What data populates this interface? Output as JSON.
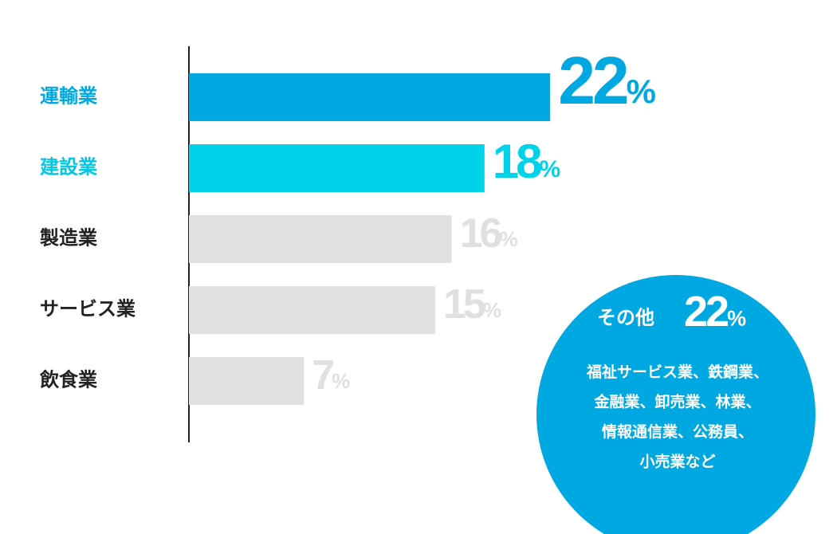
{
  "chart_data": {
    "type": "hbar",
    "categories": [
      "運輸業",
      "建設業",
      "製造業",
      "サービス業",
      "飲食業"
    ],
    "values": [
      22,
      18,
      16,
      15,
      7
    ],
    "value_labels": [
      "22%",
      "18%",
      "16%",
      "15%",
      "7%"
    ],
    "colors": [
      "#00a8e1",
      "#00d2ea",
      "#e0e0e0",
      "#e0e0e0",
      "#e0e0e0"
    ],
    "label_colors": [
      "#00a8e1",
      "#00c8e4",
      "#222222",
      "#222222",
      "#222222"
    ],
    "xlim": [
      0,
      35
    ],
    "annotation": {
      "label": "その他",
      "value": 22,
      "value_label": "22%",
      "description": [
        "福祉サービス業、鉄鋼業、",
        "金融業、卸売業、林業、",
        "情報通信業、公務員、",
        "小売業など"
      ]
    }
  }
}
